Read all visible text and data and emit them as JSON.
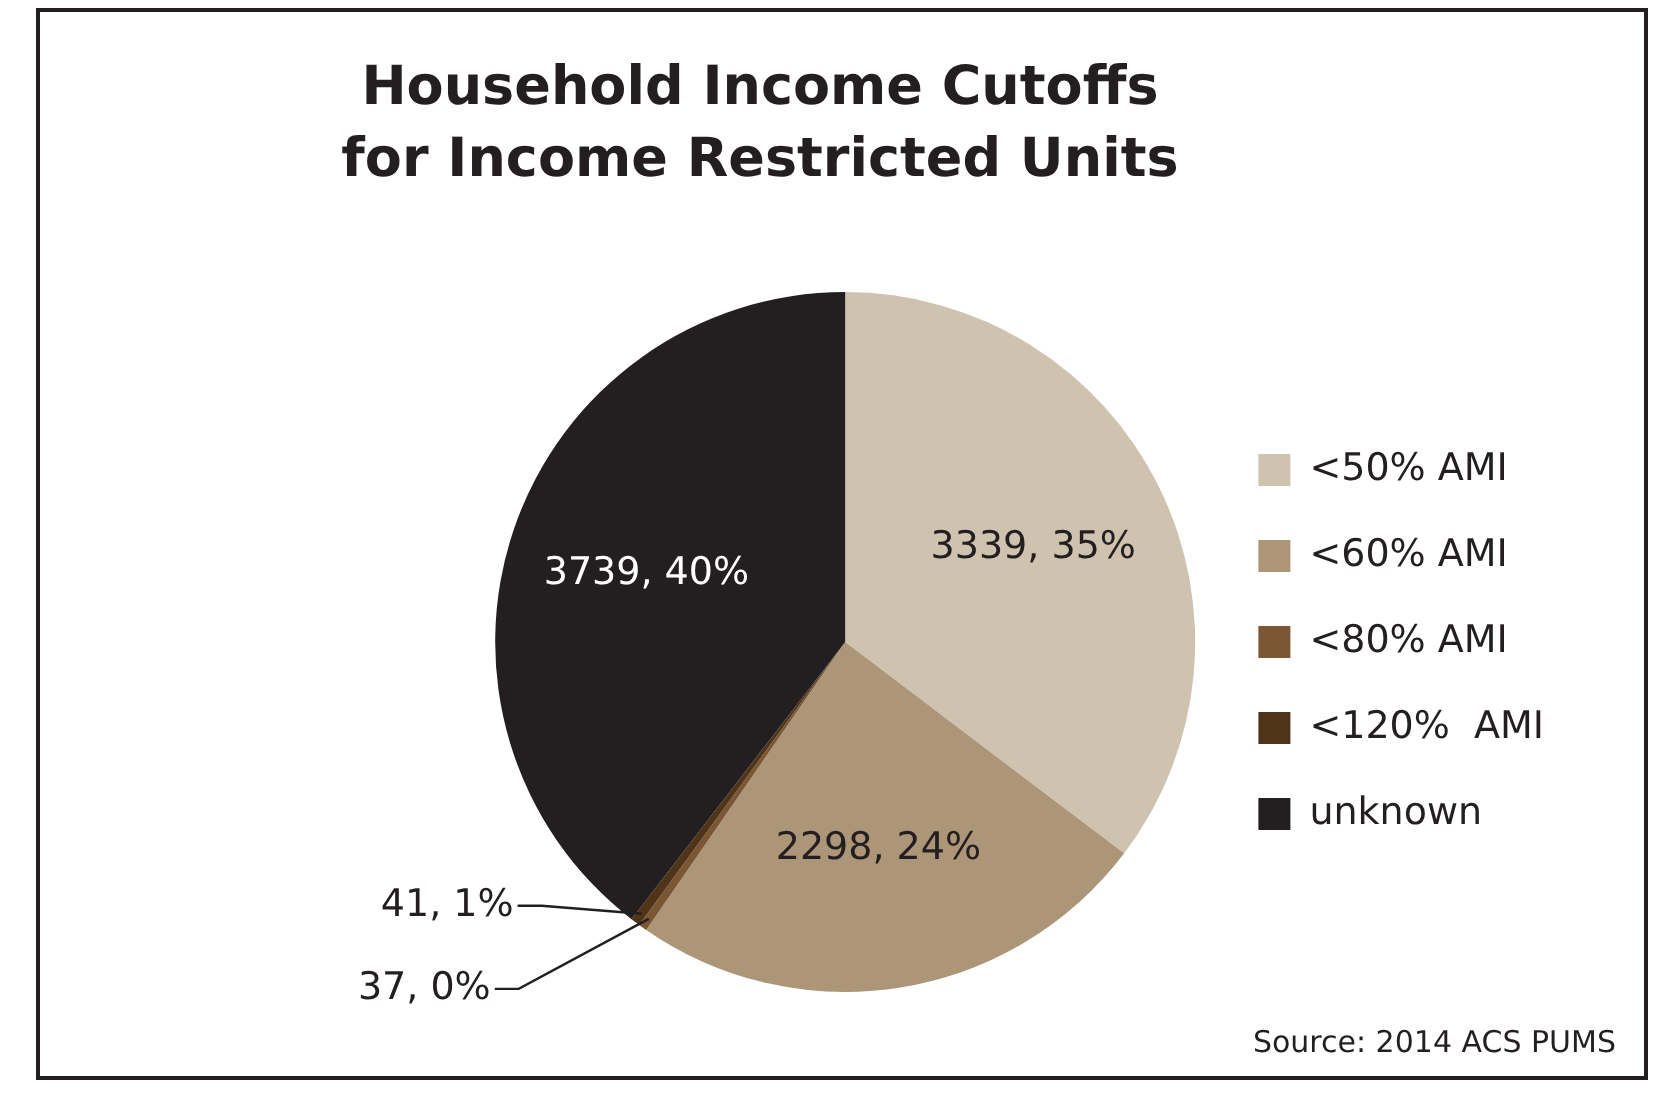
{
  "chart_data": {
    "type": "pie",
    "title": "Household Income Cutoffs for Income Restricted Units",
    "categories": [
      "<50% AMI",
      "<60% AMI",
      "<80% AMI",
      "<120%  AMI",
      "unknown"
    ],
    "values": [
      3339,
      2298,
      37,
      41,
      3739
    ],
    "colors": [
      "#cfc3b0",
      "#ad9578",
      "#7a5632",
      "#4f3418",
      "#231f20"
    ],
    "value_labels": [
      "3339, 35%",
      "2298, 24%",
      "37, 0%",
      "41, 1%",
      "3739, 40%"
    ],
    "legend": "right",
    "annotations": [
      "Source: 2014 ACS PUMS"
    ]
  }
}
